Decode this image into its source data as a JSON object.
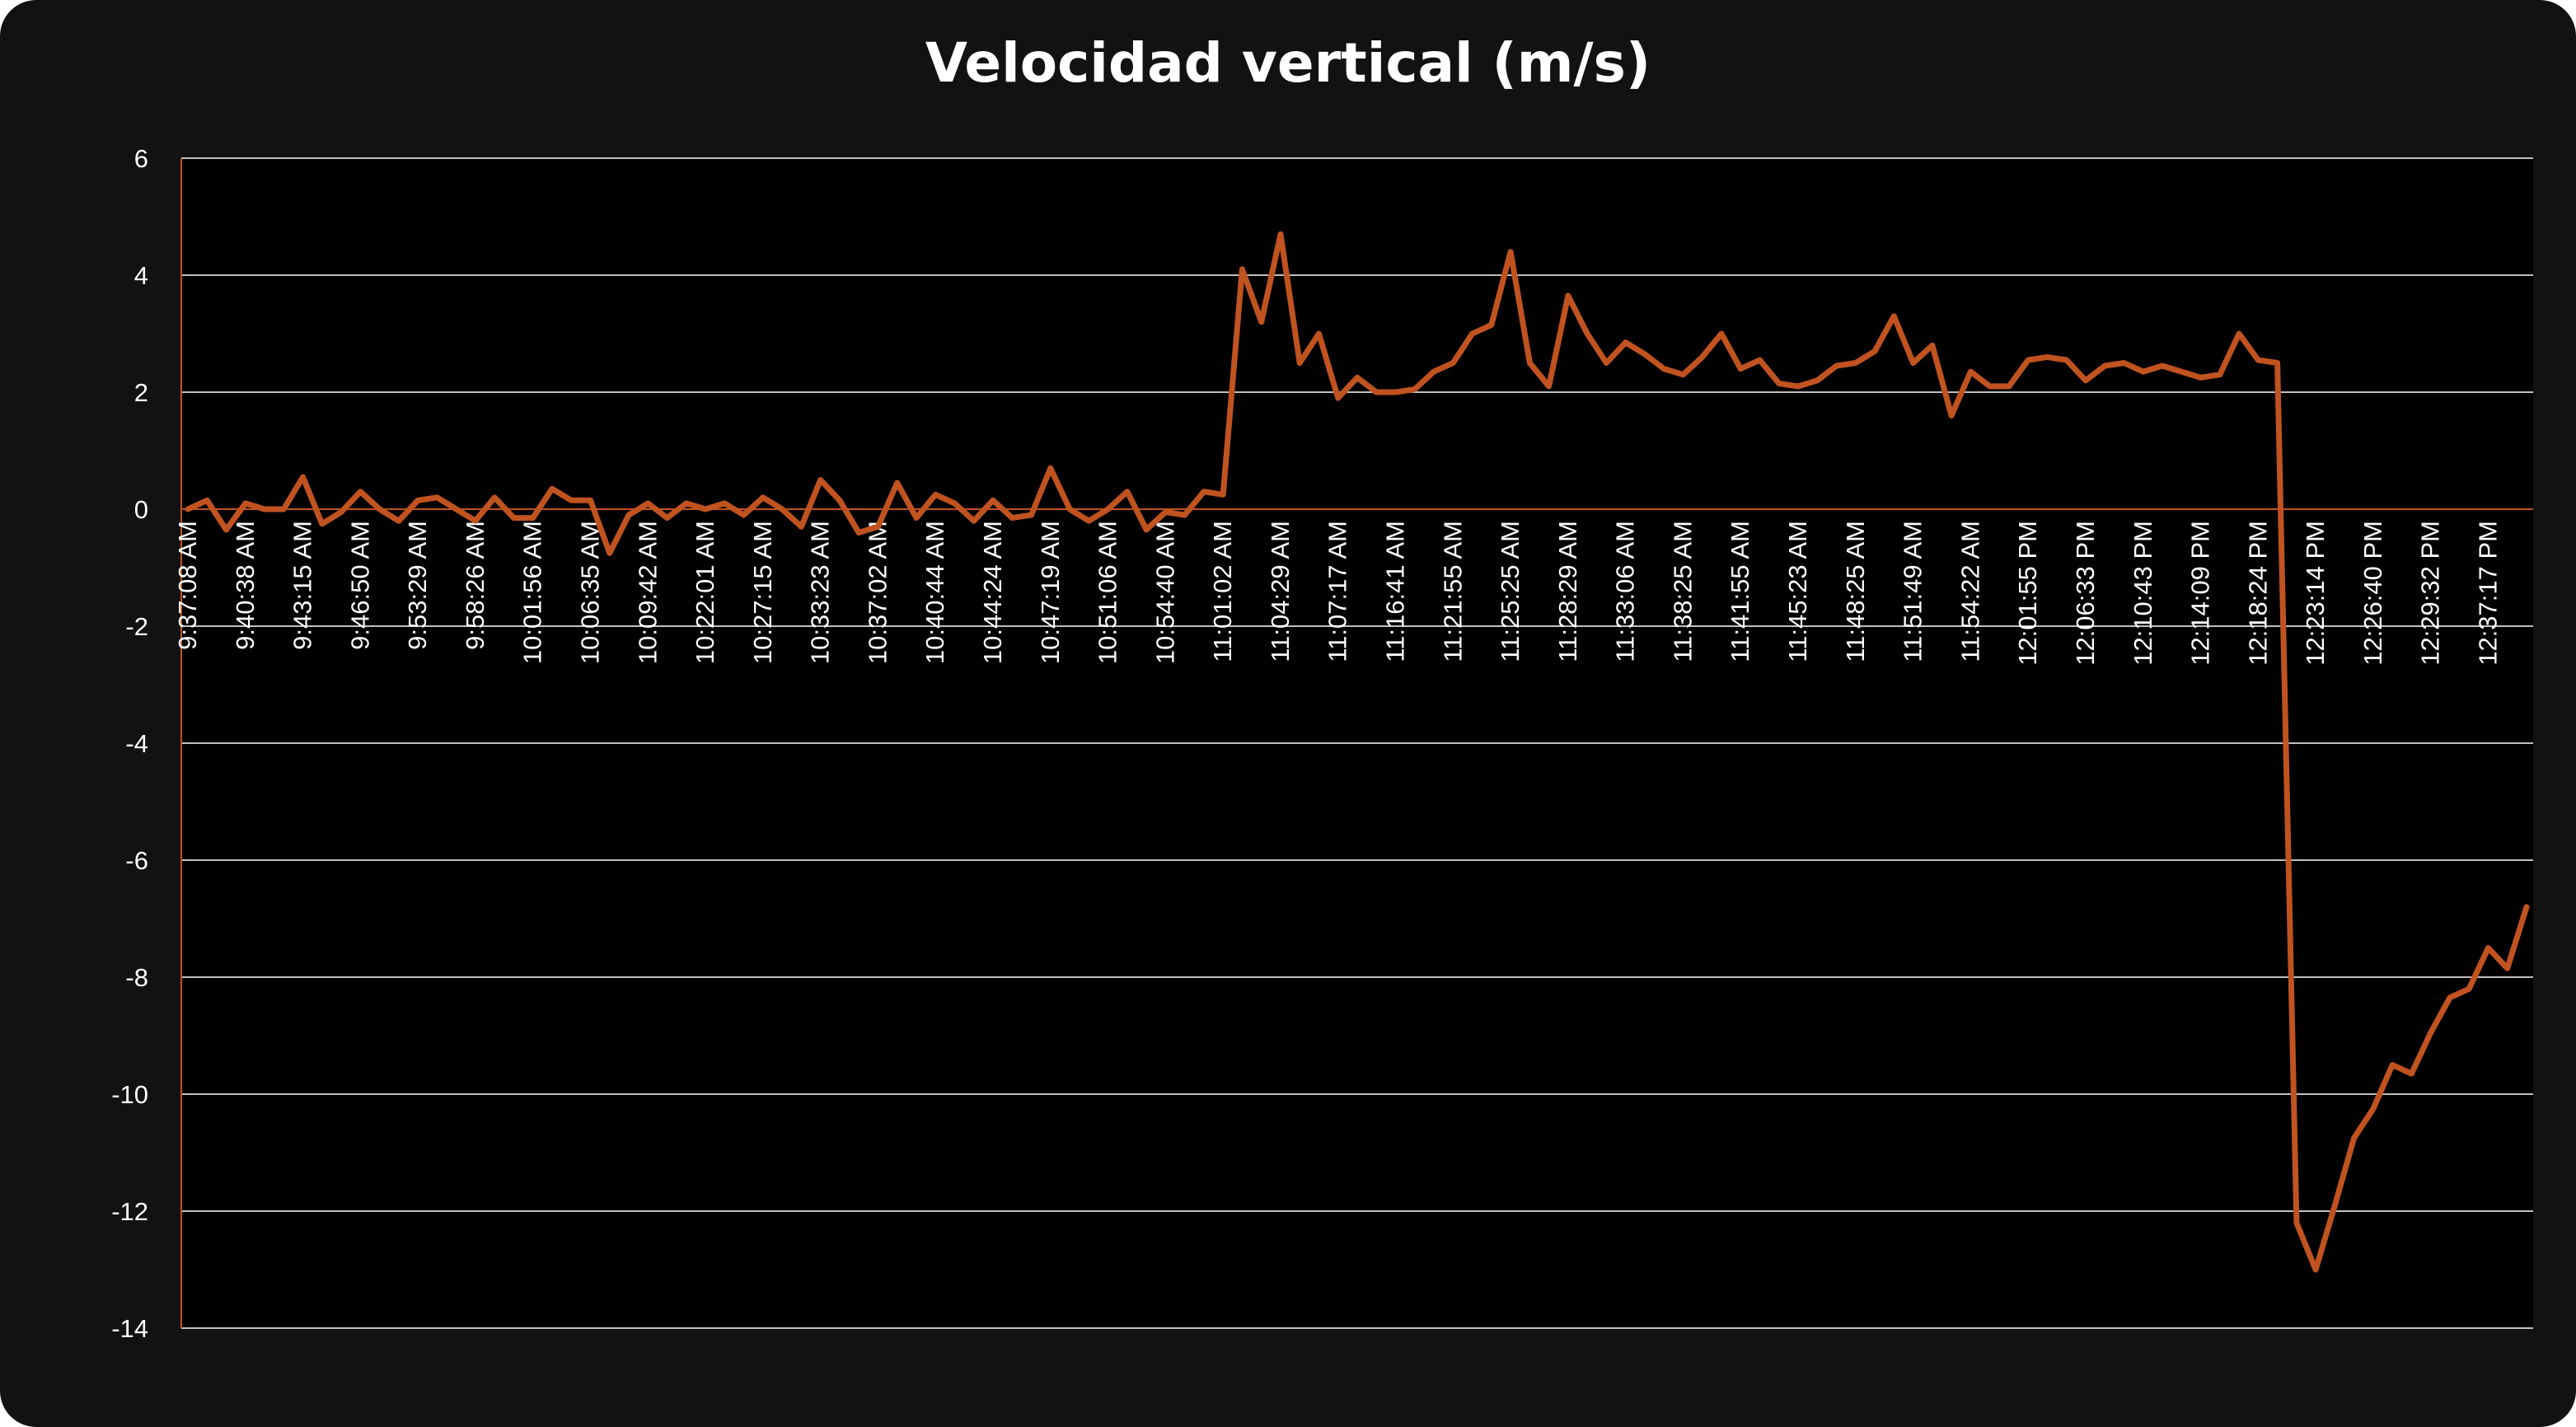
{
  "chart_data": {
    "type": "line",
    "title": "Velocidad vertical (m/s)",
    "xlabel": "",
    "ylabel": "",
    "ylim": [
      -14,
      6
    ],
    "yticks": [
      6,
      4,
      2,
      0,
      -2,
      -4,
      -6,
      -8,
      -10,
      -12,
      -14
    ],
    "grid": true,
    "legend": "none",
    "colors": {
      "background": "#000000",
      "frame": "#121212",
      "line": "#c0531f",
      "grid": "#ffffff",
      "text": "#ffffff"
    },
    "xtick_labels": [
      "9:37:08 AM",
      "9:40:38 AM",
      "9:43:15 AM",
      "9:46:50 AM",
      "9:53:29 AM",
      "9:58:26 AM",
      "10:01:56 AM",
      "10:06:35 AM",
      "10:09:42 AM",
      "10:22:01 AM",
      "10:27:15 AM",
      "10:33:23 AM",
      "10:37:02 AM",
      "10:40:44 AM",
      "10:44:24 AM",
      "10:47:19 AM",
      "10:51:06 AM",
      "10:54:40 AM",
      "11:01:02 AM",
      "11:04:29 AM",
      "11:07:17 AM",
      "11:16:41 AM",
      "11:21:55 AM",
      "11:25:25 AM",
      "11:28:29 AM",
      "11:33:06 AM",
      "11:38:25 AM",
      "11:41:55 AM",
      "11:45:23 AM",
      "11:48:25 AM",
      "11:51:49 AM",
      "11:54:22 AM",
      "12:01:55 PM",
      "12:06:33 PM",
      "12:10:43 PM",
      "12:14:09 PM",
      "12:18:24 PM",
      "12:23:14 PM",
      "12:26:40 PM",
      "12:29:32 PM",
      "12:37:17 PM"
    ],
    "y": [
      0,
      0.15,
      -0.35,
      0.1,
      0,
      0,
      0.55,
      -0.25,
      -0.05,
      0.3,
      0,
      -0.2,
      0.15,
      0.2,
      0,
      -0.2,
      0.2,
      -0.15,
      -0.15,
      0.35,
      0.15,
      0.15,
      -0.75,
      -0.1,
      0.1,
      -0.15,
      0.1,
      0,
      0.1,
      -0.1,
      0.2,
      0,
      -0.3,
      0.5,
      0.15,
      -0.4,
      -0.3,
      0.45,
      -0.15,
      0.25,
      0.1,
      -0.2,
      0.15,
      -0.15,
      -0.1,
      0.7,
      0,
      -0.2,
      0,
      0.3,
      -0.35,
      -0.05,
      -0.1,
      0.3,
      0.25,
      4.1,
      3.2,
      4.7,
      2.5,
      3,
      1.9,
      2.25,
      2,
      2,
      2.05,
      2.35,
      2.5,
      3,
      3.15,
      4.4,
      2.5,
      2.1,
      3.65,
      3,
      2.5,
      2.85,
      2.65,
      2.4,
      2.3,
      2.6,
      3,
      2.4,
      2.55,
      2.15,
      2.1,
      2.2,
      2.45,
      2.5,
      2.7,
      3.3,
      2.5,
      2.8,
      1.6,
      2.35,
      2.1,
      2.1,
      2.55,
      2.6,
      2.55,
      2.2,
      2.45,
      2.5,
      2.35,
      2.45,
      2.35,
      2.25,
      2.3,
      3,
      2.55,
      2.5,
      -12.2,
      -13,
      -11.9,
      -10.75,
      -10.25,
      -9.5,
      -9.65,
      -8.95,
      -8.35,
      -8.2,
      -7.5,
      -7.85,
      -6.8
    ]
  }
}
